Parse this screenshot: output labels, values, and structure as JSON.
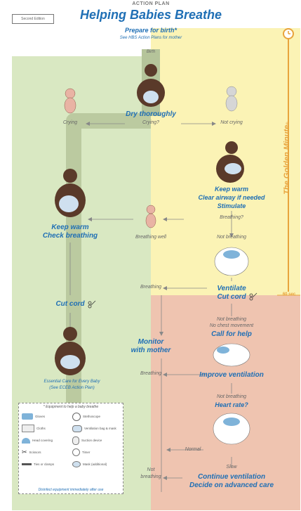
{
  "header": {
    "edition": "Second Edition",
    "section": "ACTION PLAN",
    "title": "Helping Babies Breathe",
    "prepare": "Prepare for birth*",
    "prepare_note": "See HBS Action Plans for mother"
  },
  "golden_minute": {
    "label": "The Golden Minute",
    "mark": "®",
    "time": "60 sec"
  },
  "flow": {
    "birth": "Birth",
    "dry": "Dry thoroughly",
    "crying_q": "Crying?",
    "crying": "Crying",
    "not_crying": "Not crying",
    "keep_warm_1": "Keep warm",
    "clear_airway": "Clear airway if needed",
    "stimulate": "Stimulate",
    "breathing_q": "Breathing?",
    "breathing_well": "Breathing well",
    "keep_warm_2": "Keep warm",
    "check_breathing": "Check breathing",
    "not_breathing_1": "Not breathing",
    "ventilate": "Ventilate",
    "cut_cord_1": "Cut cord",
    "breathing_1": "Breathing",
    "cut_cord_2": "Cut cord",
    "not_breathing_2": "Not breathing",
    "no_chest_movement": "No chest movement",
    "call_help": "Call for help",
    "improve_ventilation": "Improve ventilation",
    "monitor_1": "Monitor",
    "monitor_2": "with mother",
    "breathing_2": "Breathing",
    "not_breathing_3": "Not breathing",
    "heart_rate": "Heart rate?",
    "normal": "Normal",
    "slow": "Slow",
    "not_1": "Not",
    "not_2": "breathing",
    "continue_vent": "Continue ventilation",
    "decide_care": "Decide on advanced care",
    "essential_care": "Essential Care for Every Baby",
    "essential_note": "(See ECEB Action Plan)"
  },
  "equipment": {
    "title": "* Equipment to help a baby breathe",
    "items": [
      "Gloves",
      "Stethoscope",
      "Cloths",
      "Ventilation bag & mask",
      "Head covering",
      "Suction device",
      "Scissors",
      "Ties or clamps",
      "Timer",
      "Mask (additional)",
      "",
      "Bag & mask"
    ],
    "footer": "Disinfect equipment immediately after use"
  },
  "colors": {
    "green": "#d9e8c2",
    "yellow": "#fbf3b5",
    "pink": "#efc4b0",
    "path": "#a9b98e",
    "blue": "#1f6fb5",
    "orange": "#e8a33c"
  }
}
